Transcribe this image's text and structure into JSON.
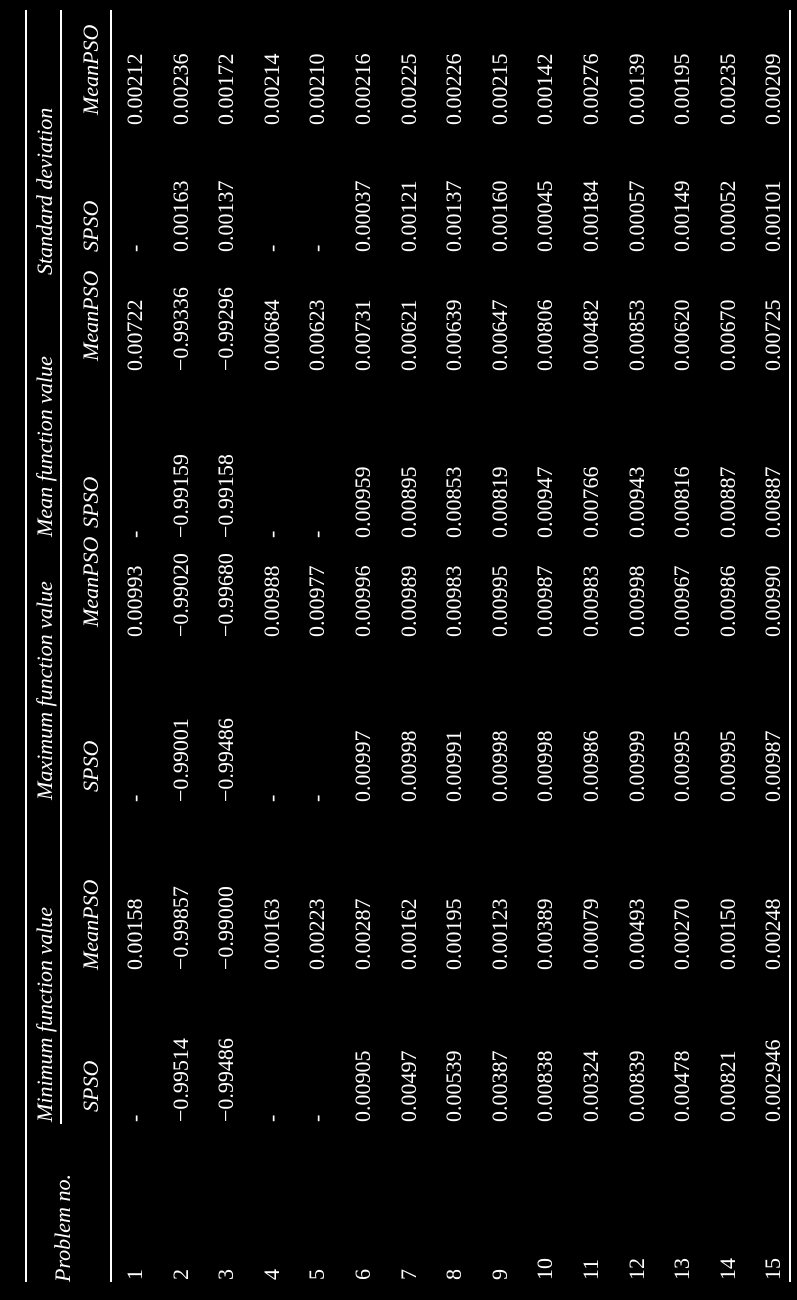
{
  "table": {
    "problem_header": "Problem no.",
    "groups": [
      "Minimum function value",
      "Maximum function value",
      "Mean function value",
      "Standard deviation"
    ],
    "subheaders": [
      "SPSO",
      "MeanPSO"
    ],
    "rows": [
      {
        "no": "1",
        "cells": [
          "-",
          "0.00158",
          "-",
          "0.00993",
          "-",
          "0.00722",
          "-",
          "0.00212"
        ]
      },
      {
        "no": "2",
        "cells": [
          "−0.99514",
          "−0.99857",
          "−0.99001",
          "−0.99020",
          "−0.99159",
          "−0.99336",
          "0.00163",
          "0.00236"
        ]
      },
      {
        "no": "3",
        "cells": [
          "−0.99486",
          "−0.99000",
          "−0.99486",
          "−0.99680",
          "−0.99158",
          "−0.99296",
          "0.00137",
          "0.00172"
        ]
      },
      {
        "no": "4",
        "cells": [
          "-",
          "0.00163",
          "-",
          "0.00988",
          "-",
          "0.00684",
          "-",
          "0.00214"
        ]
      },
      {
        "no": "5",
        "cells": [
          "-",
          "0.00223",
          "-",
          "0.00977",
          "-",
          "0.00623",
          "-",
          "0.00210"
        ]
      },
      {
        "no": "6",
        "cells": [
          "0.00905",
          "0.00287",
          "0.00997",
          "0.00996",
          "0.00959",
          "0.00731",
          "0.00037",
          "0.00216"
        ]
      },
      {
        "no": "7",
        "cells": [
          "0.00497",
          "0.00162",
          "0.00998",
          "0.00989",
          "0.00895",
          "0.00621",
          "0.00121",
          "0.00225"
        ]
      },
      {
        "no": "8",
        "cells": [
          "0.00539",
          "0.00195",
          "0.00991",
          "0.00983",
          "0.00853",
          "0.00639",
          "0.00137",
          "0.00226"
        ]
      },
      {
        "no": "9",
        "cells": [
          "0.00387",
          "0.00123",
          "0.00998",
          "0.00995",
          "0.00819",
          "0.00647",
          "0.00160",
          "0.00215"
        ]
      },
      {
        "no": "10",
        "cells": [
          "0.00838",
          "0.00389",
          "0.00998",
          "0.00987",
          "0.00947",
          "0.00806",
          "0.00045",
          "0.00142"
        ]
      },
      {
        "no": "11",
        "cells": [
          "0.00324",
          "0.00079",
          "0.00986",
          "0.00983",
          "0.00766",
          "0.00482",
          "0.00184",
          "0.00276"
        ]
      },
      {
        "no": "12",
        "cells": [
          "0.00839",
          "0.00493",
          "0.00999",
          "0.00998",
          "0.00943",
          "0.00853",
          "0.00057",
          "0.00139"
        ]
      },
      {
        "no": "13",
        "cells": [
          "0.00478",
          "0.00270",
          "0.00995",
          "0.00967",
          "0.00816",
          "0.00620",
          "0.00149",
          "0.00195"
        ]
      },
      {
        "no": "14",
        "cells": [
          "0.00821",
          "0.00150",
          "0.00995",
          "0.00986",
          "0.00887",
          "0.00670",
          "0.00052",
          "0.00235"
        ]
      },
      {
        "no": "15",
        "cells": [
          "0.002946",
          "0.00248",
          "0.00987",
          "0.00990",
          "0.00887",
          "0.00725",
          "0.00101",
          "0.00209"
        ]
      }
    ]
  }
}
